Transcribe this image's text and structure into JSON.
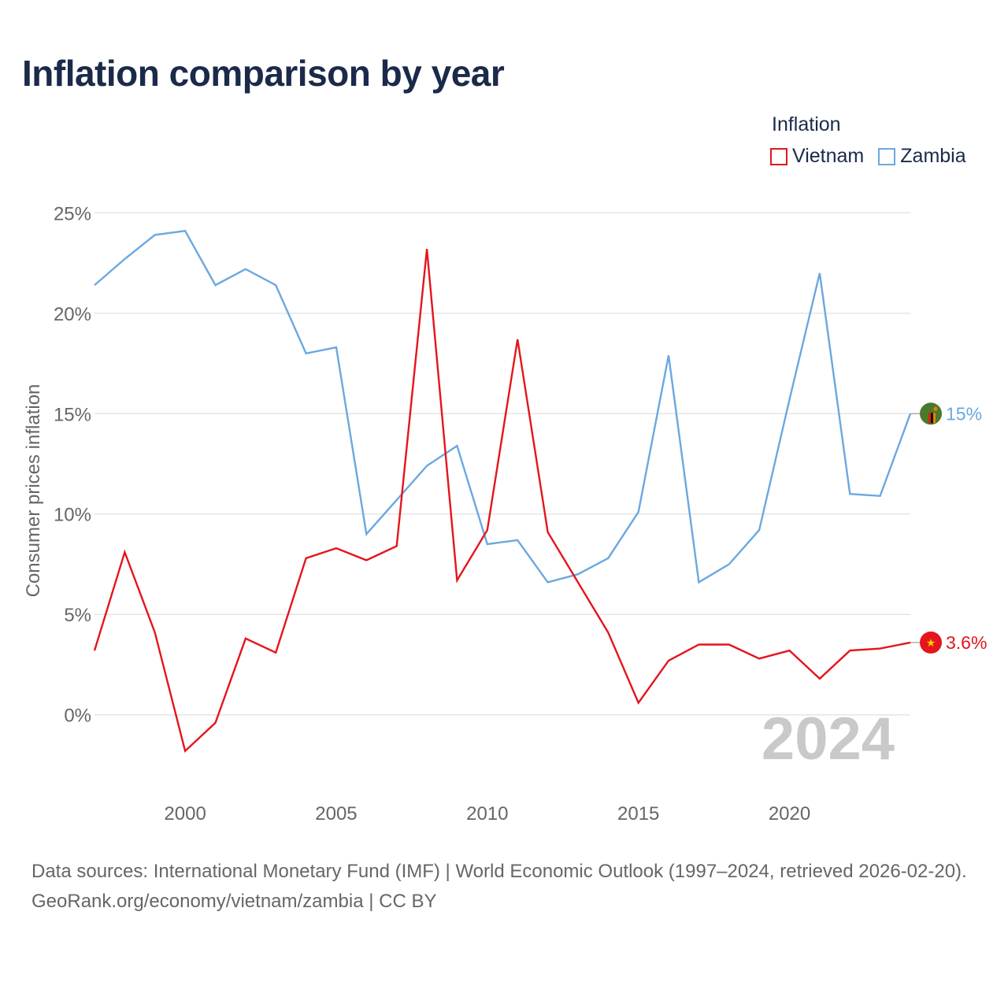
{
  "title": "Inflation comparison by year",
  "legend": {
    "title": "Inflation",
    "items": [
      {
        "name": "Vietnam",
        "color": "#e4151c"
      },
      {
        "name": "Zambia",
        "color": "#6aa8e0"
      }
    ]
  },
  "chart_data": {
    "type": "line",
    "ylabel": "Consumer prices inflation",
    "xlabel": "",
    "xlim": [
      1997,
      2024
    ],
    "ylim": [
      -4,
      25
    ],
    "x_ticks": [
      2000,
      2005,
      2010,
      2015,
      2020
    ],
    "y_ticks": [
      0,
      5,
      10,
      15,
      20,
      25
    ],
    "y_tick_labels": [
      "0%",
      "5%",
      "10%",
      "15%",
      "20%",
      "25%"
    ],
    "grid": true,
    "year_watermark": "2024",
    "x": [
      1997,
      1998,
      1999,
      2000,
      2001,
      2002,
      2003,
      2004,
      2005,
      2006,
      2007,
      2008,
      2009,
      2010,
      2011,
      2012,
      2013,
      2014,
      2015,
      2016,
      2017,
      2018,
      2019,
      2020,
      2021,
      2022,
      2023,
      2024
    ],
    "series": [
      {
        "name": "Vietnam",
        "color": "#e4151c",
        "end_label": "3.6%",
        "values": [
          3.2,
          8.1,
          4.1,
          -1.8,
          -0.4,
          3.8,
          3.1,
          7.8,
          8.3,
          7.7,
          8.4,
          23.2,
          6.7,
          9.2,
          18.7,
          9.1,
          6.6,
          4.1,
          0.6,
          2.7,
          3.5,
          3.5,
          2.8,
          3.2,
          1.8,
          3.2,
          3.3,
          3.6
        ]
      },
      {
        "name": "Zambia",
        "color": "#6aa8e0",
        "end_label": "15%",
        "values": [
          21.4,
          22.7,
          23.9,
          24.1,
          21.4,
          22.2,
          21.4,
          18.0,
          18.3,
          9.0,
          10.7,
          12.4,
          13.4,
          8.5,
          8.7,
          6.6,
          7.0,
          7.8,
          10.1,
          17.9,
          6.6,
          7.5,
          9.2,
          15.7,
          22.0,
          11.0,
          10.9,
          15.0
        ]
      }
    ]
  },
  "footer": {
    "line1": "Data sources: International Monetary Fund (IMF) | World Economic Outlook (1997–2024, retrieved 2026-02-20).",
    "line2": "GeoRank.org/economy/vietnam/zambia | CC BY"
  }
}
